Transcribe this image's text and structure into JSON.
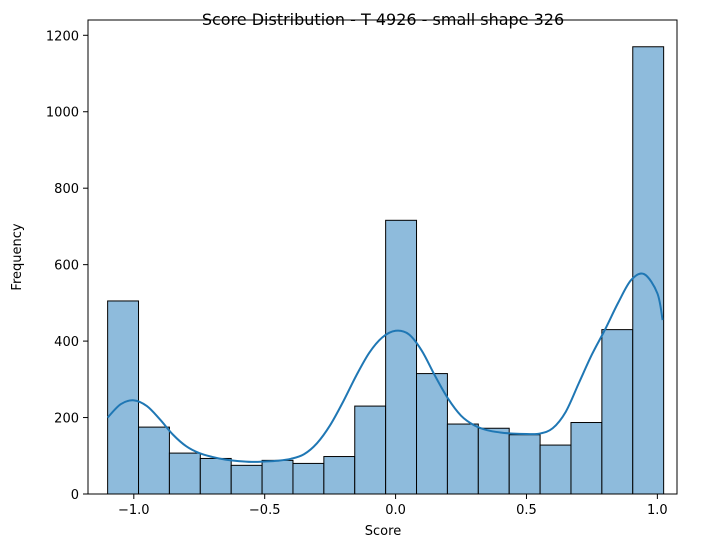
{
  "chart_data": {
    "type": "bar",
    "title": "Score Distribution - T 4926 - small shape 326",
    "xlabel": "Score",
    "ylabel": "Frequency",
    "xlim": [
      -1.175,
      1.075
    ],
    "ylim": [
      0,
      1240
    ],
    "x_ticks": [
      -1.0,
      -0.5,
      0.0,
      0.5,
      1.0
    ],
    "x_tick_labels": [
      "−1.0",
      "−0.5",
      "0.0",
      "0.5",
      "1.0"
    ],
    "y_ticks": [
      0,
      200,
      400,
      600,
      800,
      1000,
      1200
    ],
    "y_tick_labels": [
      "0",
      "200",
      "400",
      "600",
      "800",
      "1000",
      "1200"
    ],
    "bin_start": -1.1,
    "bin_width": 0.118,
    "values": [
      505,
      175,
      107,
      93,
      75,
      88,
      80,
      98,
      230,
      716,
      315,
      183,
      172,
      155,
      128,
      187,
      430,
      1170
    ],
    "kde": {
      "x": [
        -1.1,
        -1.05,
        -1.0,
        -0.95,
        -0.9,
        -0.85,
        -0.8,
        -0.75,
        -0.7,
        -0.65,
        -0.6,
        -0.55,
        -0.5,
        -0.45,
        -0.4,
        -0.35,
        -0.3,
        -0.25,
        -0.2,
        -0.15,
        -0.1,
        -0.05,
        0.0,
        0.05,
        0.1,
        0.15,
        0.2,
        0.25,
        0.3,
        0.35,
        0.4,
        0.45,
        0.5,
        0.55,
        0.6,
        0.65,
        0.7,
        0.75,
        0.8,
        0.85,
        0.9,
        0.95,
        1.0,
        1.02
      ],
      "y": [
        200,
        235,
        245,
        230,
        195,
        155,
        125,
        107,
        97,
        90,
        86,
        84,
        85,
        87,
        92,
        104,
        133,
        180,
        242,
        310,
        370,
        410,
        427,
        418,
        375,
        310,
        250,
        205,
        180,
        167,
        161,
        158,
        157,
        158,
        172,
        215,
        290,
        365,
        430,
        500,
        560,
        575,
        525,
        455
      ]
    },
    "bar_fill": "#8ebbdc",
    "bar_edge": "#000000",
    "kde_color": "#1f77b4",
    "grid": false
  }
}
